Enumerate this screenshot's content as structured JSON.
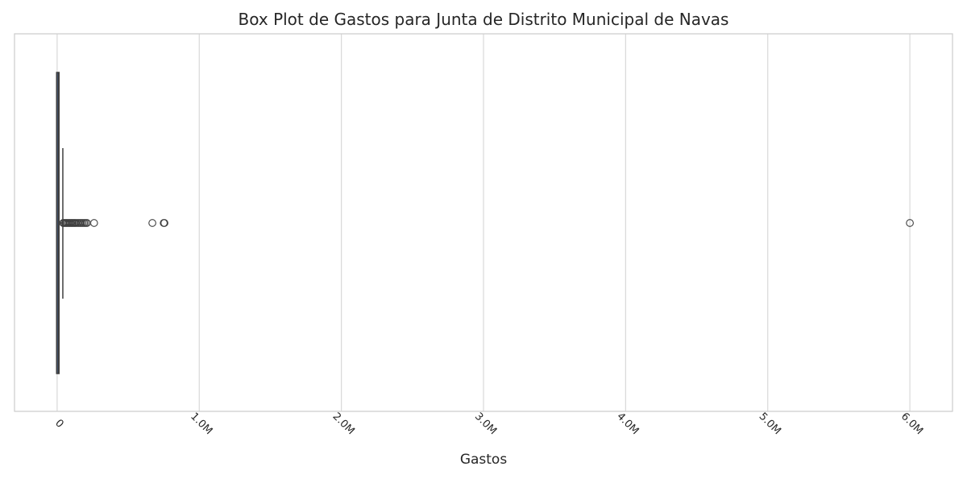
{
  "chart_data": {
    "type": "box",
    "orientation": "horizontal",
    "title": "Box Plot de Gastos para Junta de Distrito Municipal de Navas",
    "xlabel": "Gastos",
    "ylabel": "",
    "xlim": [
      -300000,
      6300000
    ],
    "grid": true,
    "ticks": [
      {
        "value": 0,
        "label": "0"
      },
      {
        "value": 1000000,
        "label": "1.0M"
      },
      {
        "value": 2000000,
        "label": "2.0M"
      },
      {
        "value": 3000000,
        "label": "3.0M"
      },
      {
        "value": 4000000,
        "label": "4.0M"
      },
      {
        "value": 5000000,
        "label": "5.0M"
      },
      {
        "value": 6000000,
        "label": "6.0M"
      }
    ],
    "box": {
      "q1": 2000,
      "median": 7000,
      "q3": 17000,
      "whisker_low": 0,
      "whisker_high": 40000
    },
    "outliers": [
      42000,
      50000,
      58000,
      66000,
      74000,
      82000,
      90000,
      98000,
      106000,
      114000,
      122000,
      130000,
      140000,
      150000,
      160000,
      170000,
      180000,
      190000,
      200000,
      210000,
      260000,
      670000,
      750000,
      755000,
      6000000
    ],
    "colors": {
      "box_fill": "#4c72b0",
      "box_edge": "#3f3f3f",
      "grid": "#d9d9d9",
      "axes_edge": "#cccccc",
      "outlier_edge": "#3f3f3f",
      "text": "#262626"
    }
  }
}
